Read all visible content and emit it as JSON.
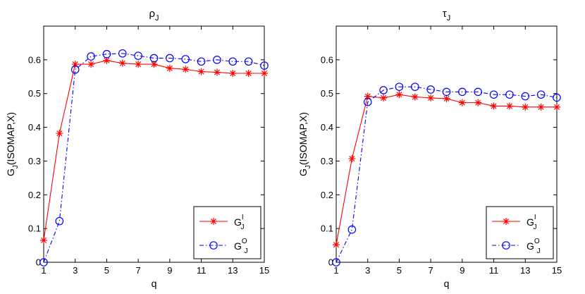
{
  "chart_data": [
    {
      "type": "line",
      "title": "ρ",
      "title_sub": "J",
      "xlabel": "q",
      "ylabel_main": "G",
      "ylabel_sub": "J",
      "ylabel_tail": "(ISOMAP,X)",
      "xlim": [
        1,
        15
      ],
      "ylim": [
        0,
        0.7
      ],
      "xticks": [
        1,
        3,
        5,
        7,
        9,
        11,
        13,
        15
      ],
      "yticks": [
        0,
        0.1,
        0.2,
        0.3,
        0.4,
        0.5,
        0.6
      ],
      "ytick_labels": [
        "0",
        "0.1",
        "0.2",
        "0.3",
        "0.4",
        "0.5",
        "0.6"
      ],
      "grid": false,
      "legend_position": "bottom-right",
      "x": [
        1,
        2,
        3,
        4,
        5,
        6,
        7,
        8,
        9,
        10,
        11,
        12,
        13,
        14,
        15
      ],
      "series": [
        {
          "legend_main": "G",
          "legend_sup": "I",
          "legend_sub": "J",
          "color": "#ff0000",
          "marker": "star",
          "line": "solid",
          "values": [
            0.065,
            0.382,
            0.587,
            0.587,
            0.598,
            0.59,
            0.587,
            0.587,
            0.575,
            0.572,
            0.565,
            0.563,
            0.56,
            0.56,
            0.56
          ]
        },
        {
          "legend_main": "G",
          "legend_sup": "O",
          "legend_sub": "J",
          "color": "#0000ff",
          "marker": "circle",
          "line": "dashdot",
          "values": [
            0.0,
            0.122,
            0.571,
            0.61,
            0.617,
            0.619,
            0.612,
            0.605,
            0.605,
            0.602,
            0.595,
            0.6,
            0.595,
            0.595,
            0.583
          ]
        }
      ]
    },
    {
      "type": "line",
      "title": "τ",
      "title_sub": "J",
      "xlabel": "q",
      "ylabel_main": "G",
      "ylabel_sub": "J",
      "ylabel_tail": "(ISOMAP,X)",
      "xlim": [
        1,
        15
      ],
      "ylim": [
        0,
        0.7
      ],
      "xticks": [
        1,
        3,
        5,
        7,
        9,
        11,
        13,
        15
      ],
      "yticks": [
        0,
        0.1,
        0.2,
        0.3,
        0.4,
        0.5,
        0.6
      ],
      "ytick_labels": [
        "0",
        "0.1",
        "0.2",
        "0.3",
        "0.4",
        "0.5",
        "0.6"
      ],
      "grid": false,
      "legend_position": "bottom-right",
      "x": [
        1,
        2,
        3,
        4,
        5,
        6,
        7,
        8,
        9,
        10,
        11,
        12,
        13,
        14,
        15
      ],
      "series": [
        {
          "legend_main": "G",
          "legend_sup": "I",
          "legend_sub": "J",
          "color": "#ff0000",
          "marker": "star",
          "line": "solid",
          "values": [
            0.052,
            0.307,
            0.492,
            0.487,
            0.497,
            0.49,
            0.487,
            0.485,
            0.473,
            0.473,
            0.463,
            0.463,
            0.46,
            0.46,
            0.46
          ]
        },
        {
          "legend_main": "G",
          "legend_sup": "O",
          "legend_sub": "J",
          "color": "#0000ff",
          "marker": "circle",
          "line": "dashdot",
          "values": [
            0.0,
            0.097,
            0.475,
            0.51,
            0.52,
            0.52,
            0.512,
            0.505,
            0.505,
            0.505,
            0.497,
            0.497,
            0.492,
            0.497,
            0.488
          ]
        }
      ]
    }
  ]
}
